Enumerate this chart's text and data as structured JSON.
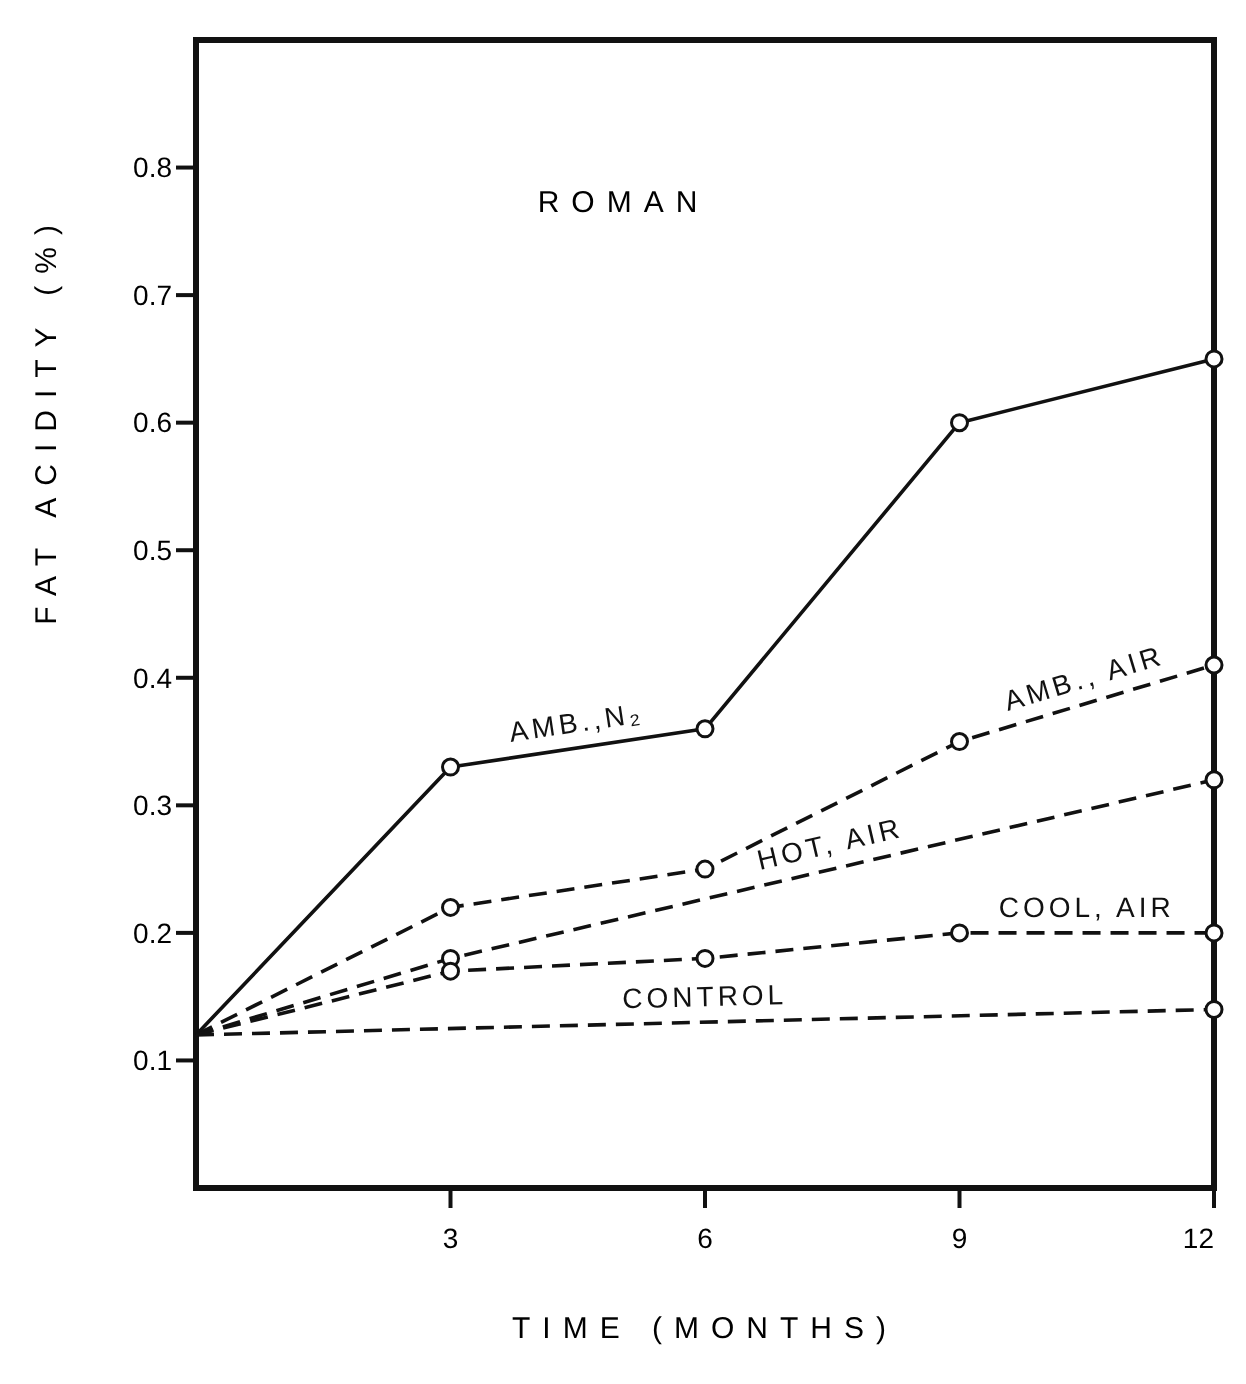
{
  "chart_data": {
    "type": "line",
    "xlabel": "TIME  (MONTHS)",
    "ylabel": "FAT  ACIDITY  (%)",
    "annotations": [
      "ROMAN"
    ],
    "xlim": [
      0,
      12
    ],
    "xticks": [
      3,
      6,
      9,
      12
    ],
    "ylim": [
      0,
      0.9
    ],
    "yticks": [
      0.1,
      0.2,
      0.3,
      0.4,
      0.5,
      0.6,
      0.7,
      0.8
    ],
    "marker": "circle",
    "grid": false,
    "series": [
      {
        "name": "AMB.,N₂",
        "color": "#111111",
        "line_style": "solid",
        "x": [
          0,
          3,
          6,
          9,
          12
        ],
        "values": [
          0.12,
          0.33,
          0.36,
          0.6,
          0.65
        ]
      },
      {
        "name": "AMB., AIR",
        "color": "#111111",
        "line_style": "dashed",
        "x": [
          0,
          3,
          6,
          9,
          12
        ],
        "values": [
          0.12,
          0.22,
          0.25,
          0.35,
          0.41
        ]
      },
      {
        "name": "HOT, AIR",
        "color": "#111111",
        "line_style": "dashed",
        "x": [
          0,
          3,
          12
        ],
        "values": [
          0.12,
          0.18,
          0.32
        ]
      },
      {
        "name": "COOL, AIR",
        "color": "#111111",
        "line_style": "dashed",
        "x": [
          0,
          3,
          6,
          9,
          12
        ],
        "values": [
          0.12,
          0.17,
          0.18,
          0.2,
          0.2
        ]
      },
      {
        "name": "CONTROL",
        "color": "#111111",
        "line_style": "dashed",
        "x": [
          0,
          12
        ],
        "values": [
          0.12,
          0.14
        ]
      }
    ]
  }
}
